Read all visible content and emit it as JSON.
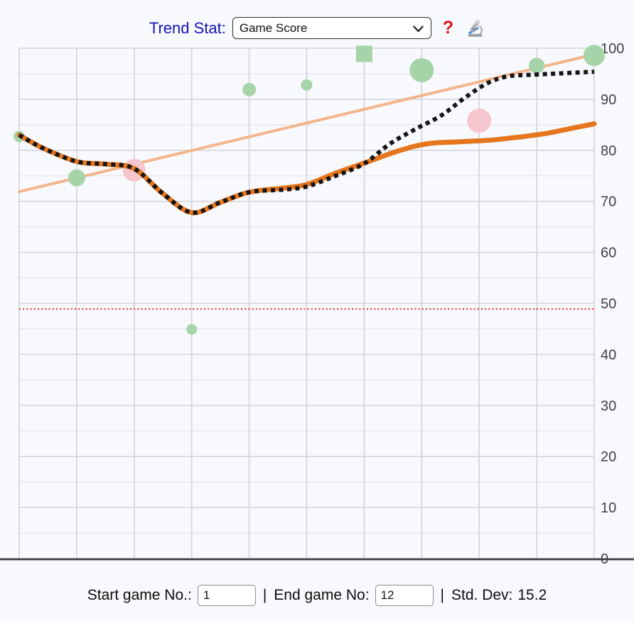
{
  "toolbar": {
    "label": "Trend Stat:",
    "select_value": "Game Score",
    "help": "?",
    "microscope_icon": "microscope"
  },
  "footer": {
    "start_label": "Start game No.:",
    "start_value": "1",
    "sep1": "|",
    "end_label": "End game No:",
    "end_value": "12",
    "sep2": "|",
    "stddev_label": "Std. Dev:",
    "stddev_value": "15.2"
  },
  "chart_data": {
    "type": "scatter",
    "title": "",
    "xlabel": "",
    "ylabel": "",
    "x_axis": {
      "start_game": 1,
      "end_game": 12,
      "gridline_games": [
        1,
        2,
        3,
        4,
        5,
        6,
        7,
        8,
        9,
        10,
        11
      ]
    },
    "y_axis": {
      "range": [
        0,
        100
      ],
      "ticks": [
        0,
        10,
        20,
        30,
        40,
        50,
        60,
        70,
        80,
        90,
        100
      ],
      "minor_step": 5,
      "side": "right"
    },
    "grid": true,
    "legend": "none",
    "points": [
      {
        "game": 1,
        "value": 82.7,
        "shape": "circle",
        "color": "green",
        "size": 8
      },
      {
        "game": 2,
        "value": 74.6,
        "shape": "circle",
        "color": "green",
        "size": 12
      },
      {
        "game": 3,
        "value": 76.1,
        "shape": "circle",
        "color": "pink",
        "size": 16
      },
      {
        "game": 4,
        "value": 44.9,
        "shape": "circle",
        "color": "green",
        "size": 7.5
      },
      {
        "game": 5,
        "value": 91.9,
        "shape": "circle",
        "color": "green",
        "size": 9.5
      },
      {
        "game": 6,
        "value": 92.8,
        "shape": "circle",
        "color": "green",
        "size": 8
      },
      {
        "game": 7,
        "value": 98.9,
        "shape": "square",
        "color": "green",
        "size": 11.5
      },
      {
        "game": 8,
        "value": 95.7,
        "shape": "circle",
        "color": "green",
        "size": 17
      },
      {
        "game": 9,
        "value": 85.8,
        "shape": "circle",
        "color": "pink",
        "size": 17
      },
      {
        "game": 10,
        "value": 96.6,
        "shape": "circle",
        "color": "green",
        "size": 11
      },
      {
        "game": 11,
        "value": 98.6,
        "shape": "circle",
        "color": "green",
        "size": 15
      }
    ],
    "series": [
      {
        "name": "moving-average",
        "style": "solid-orange",
        "points": [
          [
            1,
            83
          ],
          [
            1.4,
            80.5
          ],
          [
            2,
            77.8
          ],
          [
            2.5,
            77.3
          ],
          [
            3,
            76.4
          ],
          [
            3.5,
            71.5
          ],
          [
            4,
            67.8
          ],
          [
            4.5,
            69.8
          ],
          [
            5,
            71.8
          ],
          [
            5.6,
            72.6
          ],
          [
            6,
            73.3
          ],
          [
            6.5,
            75.5
          ],
          [
            7,
            77.5
          ],
          [
            7.6,
            79.9
          ],
          [
            8.1,
            81.3
          ],
          [
            8.7,
            81.7
          ],
          [
            9.3,
            82.1
          ],
          [
            10.1,
            83.2
          ],
          [
            10.6,
            84.3
          ],
          [
            11,
            85.2
          ]
        ]
      },
      {
        "name": "smoothed-score",
        "style": "dotted-black",
        "points": [
          [
            1,
            83
          ],
          [
            1.4,
            80.5
          ],
          [
            2,
            77.8
          ],
          [
            2.5,
            77.3
          ],
          [
            3,
            76.4
          ],
          [
            3.5,
            71.5
          ],
          [
            4,
            67.8
          ],
          [
            4.5,
            69.8
          ],
          [
            5,
            71.8
          ],
          [
            5.6,
            72.3
          ],
          [
            6,
            72.9
          ],
          [
            6.5,
            75.0
          ],
          [
            7,
            77.4
          ],
          [
            7.45,
            81.3
          ],
          [
            7.9,
            84.2
          ],
          [
            8.35,
            86.9
          ],
          [
            8.75,
            90.3
          ],
          [
            9.15,
            93.2
          ],
          [
            9.5,
            94.5
          ],
          [
            9.9,
            94.8
          ],
          [
            10.45,
            95.1
          ],
          [
            11,
            95.4
          ]
        ]
      }
    ],
    "trend_line": {
      "style": "solid-peach",
      "points": [
        [
          1,
          71.9
        ],
        [
          11,
          98.8
        ]
      ]
    },
    "threshold_line": {
      "style": "dotted-red",
      "value": 48.9
    },
    "colors": {
      "green": "#a6d4a8",
      "pink": "#f6c6ce",
      "orange": "#e5761d",
      "dotted": "#161616",
      "trend": "#f3b286",
      "threshold": "#ee1111",
      "grid_major": "#d2d3da",
      "grid_minor": "#e3e4ea",
      "axis": "#3d3d3d",
      "tick_label": "#40404a"
    }
  }
}
